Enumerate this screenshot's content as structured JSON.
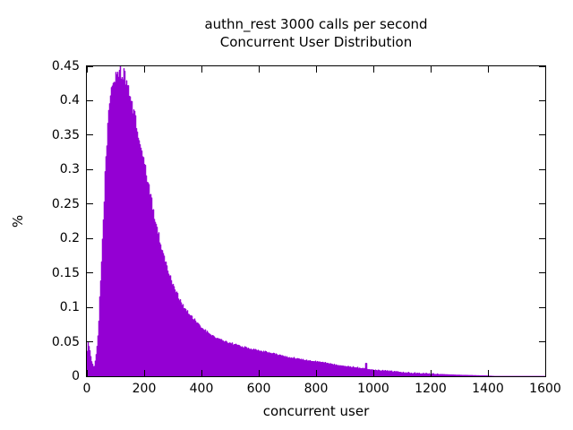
{
  "chart_data": {
    "type": "area",
    "title": "authn_rest 3000 calls per second",
    "subtitle": "Concurrent User Distribution",
    "xlabel": "concurrent user",
    "ylabel": "%",
    "xlim": [
      0,
      1600
    ],
    "ylim": [
      0,
      0.45
    ],
    "grid": false,
    "legend": "none",
    "fill_color": "#9400D3",
    "axis_color": "#000000",
    "background_color": "#ffffff",
    "x_tick_values": [
      0,
      200,
      400,
      600,
      800,
      1000,
      1200,
      1400,
      1600
    ],
    "x_tick_labels": [
      "0",
      "200",
      "400",
      "600",
      "800",
      "1000",
      "1200",
      "1400",
      "1600"
    ],
    "y_tick_values": [
      0,
      0.05,
      0.1,
      0.15,
      0.2,
      0.25,
      0.3,
      0.35,
      0.4,
      0.45
    ],
    "y_tick_labels": [
      "0",
      "0.05",
      "0.1",
      "0.15",
      "0.2",
      "0.25",
      "0.3",
      "0.35",
      "0.4",
      "0.45"
    ],
    "points": [
      [
        0,
        0.03
      ],
      [
        4,
        0.048
      ],
      [
        8,
        0.045
      ],
      [
        12,
        0.035
      ],
      [
        17,
        0.022
      ],
      [
        22,
        0.015
      ],
      [
        26,
        0.014
      ],
      [
        30,
        0.022
      ],
      [
        34,
        0.035
      ],
      [
        38,
        0.052
      ],
      [
        42,
        0.078
      ],
      [
        46,
        0.12
      ],
      [
        52,
        0.17
      ],
      [
        58,
        0.23
      ],
      [
        64,
        0.29
      ],
      [
        70,
        0.34
      ],
      [
        76,
        0.38
      ],
      [
        82,
        0.405
      ],
      [
        88,
        0.42
      ],
      [
        94,
        0.43
      ],
      [
        102,
        0.437
      ],
      [
        112,
        0.441
      ],
      [
        120,
        0.442
      ],
      [
        128,
        0.438
      ],
      [
        136,
        0.43
      ],
      [
        144,
        0.419
      ],
      [
        152,
        0.406
      ],
      [
        160,
        0.392
      ],
      [
        170,
        0.372
      ],
      [
        180,
        0.35
      ],
      [
        190,
        0.33
      ],
      [
        200,
        0.309
      ],
      [
        210,
        0.289
      ],
      [
        220,
        0.268
      ],
      [
        230,
        0.246
      ],
      [
        242,
        0.221
      ],
      [
        254,
        0.199
      ],
      [
        268,
        0.176
      ],
      [
        285,
        0.152
      ],
      [
        300,
        0.134
      ],
      [
        316,
        0.119
      ],
      [
        334,
        0.104
      ],
      [
        352,
        0.093
      ],
      [
        372,
        0.083
      ],
      [
        395,
        0.073
      ],
      [
        420,
        0.064
      ],
      [
        450,
        0.056
      ],
      [
        480,
        0.051
      ],
      [
        510,
        0.047
      ],
      [
        545,
        0.043
      ],
      [
        580,
        0.039
      ],
      [
        615,
        0.036
      ],
      [
        650,
        0.033
      ],
      [
        690,
        0.029
      ],
      [
        730,
        0.026
      ],
      [
        770,
        0.023
      ],
      [
        810,
        0.021
      ],
      [
        855,
        0.018
      ],
      [
        900,
        0.015
      ],
      [
        955,
        0.012
      ],
      [
        1010,
        0.009
      ],
      [
        1075,
        0.007
      ],
      [
        1130,
        0.005
      ],
      [
        1180,
        0.004
      ],
      [
        1230,
        0.003
      ],
      [
        1290,
        0.002
      ],
      [
        1350,
        0.0013
      ],
      [
        1395,
        0.0009
      ],
      [
        1410,
        0.0005
      ],
      [
        1425,
        0.0
      ],
      [
        1600,
        0.0
      ]
    ],
    "spikes": [
      [
        975,
        0.019
      ],
      [
        1045,
        0.006
      ]
    ]
  }
}
